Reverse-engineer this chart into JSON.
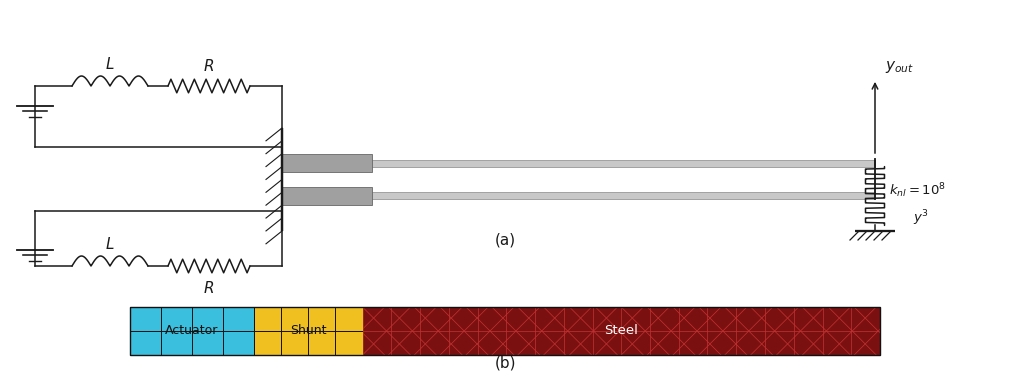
{
  "fig_width": 10.11,
  "fig_height": 3.78,
  "dpi": 100,
  "bg_color": "#ffffff",
  "label_a": "(a)",
  "label_b": "(b)",
  "color": "#1a1a1a",
  "actuator_color": "#3bbfde",
  "shunt_color": "#f0c020",
  "steel_color": "#7a1010",
  "steel_grid_color": "#c03030",
  "actuator_label": "Actuator",
  "shunt_label": "Shunt",
  "steel_label": "Steel",
  "n_coils": 4,
  "n_resist_teeth": 7
}
